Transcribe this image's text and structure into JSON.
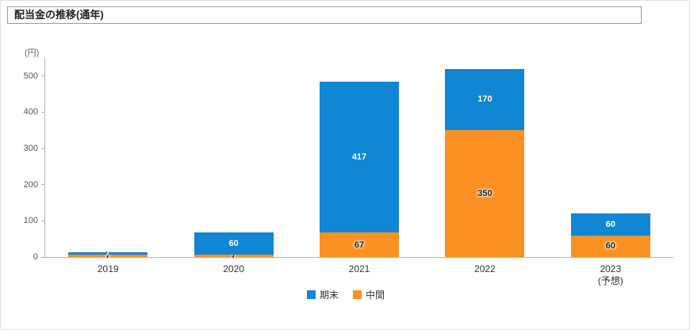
{
  "title": "配当金の推移(通年)",
  "y_axis_unit": "(円)",
  "legend": [
    {
      "key": "kimatsu",
      "label": "期末",
      "color": "#1086d4"
    },
    {
      "key": "chuukan",
      "label": "中間",
      "color": "#fb9123"
    }
  ],
  "chart_data": {
    "type": "bar",
    "stacked": true,
    "title": "配当金の推移(通年)",
    "ylabel": "(円)",
    "xlabel": "",
    "ylim": [
      0,
      550
    ],
    "yticks": [
      0,
      100,
      200,
      300,
      400,
      500
    ],
    "grid": false,
    "legend_position": "bottom",
    "categories": [
      "2019",
      "2020",
      "2021",
      "2022",
      "2023"
    ],
    "category_sublabels": [
      "",
      "",
      "",
      "",
      "(予想)"
    ],
    "series": [
      {
        "name": "中間",
        "key": "chuukan",
        "color": "#fb9123",
        "label_color": "#222222",
        "label_halo": true,
        "values": [
          7,
          7,
          67,
          350,
          60
        ]
      },
      {
        "name": "期末",
        "key": "kimatsu",
        "color": "#1086d4",
        "label_color": "#ffffff",
        "label_halo": false,
        "values": [
          7,
          60,
          417,
          170,
          60
        ]
      }
    ]
  }
}
